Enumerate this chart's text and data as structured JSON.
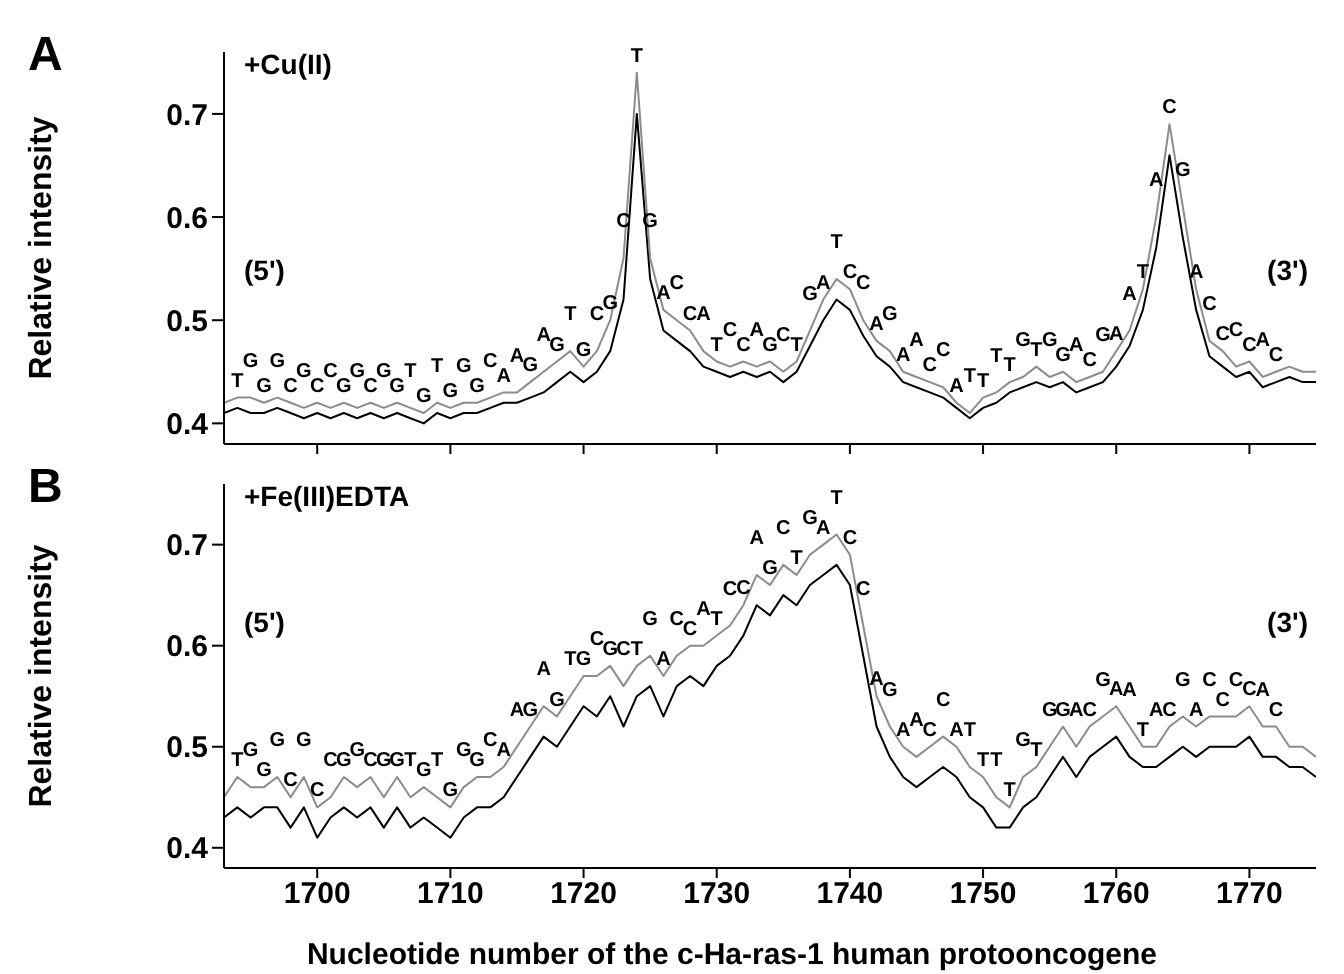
{
  "chart_data": [
    {
      "type": "line",
      "title": "+Cu(II)",
      "ylabel": "Relative intensity",
      "xlim": [
        1693,
        1775
      ],
      "xticks": [
        1700,
        1710,
        1720,
        1730,
        1740,
        1750,
        1760,
        1770
      ],
      "ylim": [
        0.38,
        0.76
      ],
      "yticks": [
        0.4,
        0.5,
        0.6,
        0.7
      ],
      "tick_labels": "y",
      "x": [
        1693,
        1694,
        1695,
        1696,
        1697,
        1698,
        1699,
        1700,
        1701,
        1702,
        1703,
        1704,
        1705,
        1706,
        1707,
        1708,
        1709,
        1710,
        1711,
        1712,
        1713,
        1714,
        1715,
        1716,
        1717,
        1718,
        1719,
        1720,
        1721,
        1722,
        1723,
        1724,
        1725,
        1726,
        1727,
        1728,
        1729,
        1730,
        1731,
        1732,
        1733,
        1734,
        1735,
        1736,
        1737,
        1738,
        1739,
        1740,
        1741,
        1742,
        1743,
        1744,
        1745,
        1746,
        1747,
        1748,
        1749,
        1750,
        1751,
        1752,
        1753,
        1754,
        1755,
        1756,
        1757,
        1758,
        1759,
        1760,
        1761,
        1762,
        1763,
        1764,
        1765,
        1766,
        1767,
        1768,
        1769,
        1770,
        1771,
        1772,
        1773,
        1774,
        1775
      ],
      "series": [
        {
          "color": "#000000",
          "values": [
            0.41,
            0.415,
            0.41,
            0.41,
            0.415,
            0.41,
            0.405,
            0.41,
            0.405,
            0.41,
            0.405,
            0.41,
            0.405,
            0.41,
            0.405,
            0.4,
            0.41,
            0.405,
            0.41,
            0.41,
            0.415,
            0.42,
            0.42,
            0.425,
            0.43,
            0.44,
            0.45,
            0.44,
            0.45,
            0.47,
            0.52,
            0.7,
            0.54,
            0.49,
            0.48,
            0.47,
            0.455,
            0.45,
            0.445,
            0.45,
            0.445,
            0.45,
            0.44,
            0.45,
            0.475,
            0.5,
            0.52,
            0.51,
            0.485,
            0.465,
            0.455,
            0.44,
            0.435,
            0.43,
            0.425,
            0.415,
            0.405,
            0.415,
            0.42,
            0.43,
            0.435,
            0.44,
            0.435,
            0.44,
            0.43,
            0.435,
            0.44,
            0.455,
            0.475,
            0.51,
            0.57,
            0.66,
            0.58,
            0.51,
            0.465,
            0.455,
            0.445,
            0.45,
            0.435,
            0.44,
            0.445,
            0.44,
            0.44
          ]
        },
        {
          "color": "#8c8c8c",
          "values": [
            0.42,
            0.425,
            0.425,
            0.42,
            0.425,
            0.42,
            0.415,
            0.42,
            0.415,
            0.42,
            0.415,
            0.42,
            0.415,
            0.42,
            0.415,
            0.41,
            0.42,
            0.415,
            0.42,
            0.42,
            0.425,
            0.43,
            0.43,
            0.44,
            0.45,
            0.46,
            0.47,
            0.455,
            0.47,
            0.5,
            0.56,
            0.74,
            0.56,
            0.51,
            0.5,
            0.49,
            0.47,
            0.46,
            0.455,
            0.46,
            0.455,
            0.46,
            0.45,
            0.46,
            0.49,
            0.52,
            0.54,
            0.53,
            0.5,
            0.48,
            0.47,
            0.45,
            0.445,
            0.44,
            0.435,
            0.42,
            0.41,
            0.425,
            0.43,
            0.44,
            0.445,
            0.455,
            0.445,
            0.45,
            0.44,
            0.445,
            0.45,
            0.47,
            0.49,
            0.53,
            0.6,
            0.69,
            0.61,
            0.53,
            0.48,
            0.47,
            0.455,
            0.46,
            0.445,
            0.45,
            0.455,
            0.45,
            0.45
          ]
        }
      ],
      "annotations": [
        "A",
        "(5')",
        "(3')",
        {
          "text": "T",
          "x": 1694,
          "y": 0.425
        },
        {
          "text": "G",
          "x": 1695,
          "y": 0.425
        },
        {
          "text": "G",
          "x": 1696,
          "y": 0.42
        },
        {
          "text": "G",
          "x": 1697,
          "y": 0.425
        },
        {
          "text": "C",
          "x": 1698,
          "y": 0.42
        },
        {
          "text": "G",
          "x": 1699,
          "y": 0.415
        },
        {
          "text": "C",
          "x": 1700,
          "y": 0.42
        },
        {
          "text": "C",
          "x": 1701,
          "y": 0.415
        },
        {
          "text": "G",
          "x": 1702,
          "y": 0.42
        },
        {
          "text": "G",
          "x": 1703,
          "y": 0.415
        },
        {
          "text": "C",
          "x": 1704,
          "y": 0.42
        },
        {
          "text": "G",
          "x": 1705,
          "y": 0.415
        },
        {
          "text": "G",
          "x": 1706,
          "y": 0.42
        },
        {
          "text": "T",
          "x": 1707,
          "y": 0.415
        },
        {
          "text": "G",
          "x": 1708,
          "y": 0.41
        },
        {
          "text": "T",
          "x": 1709,
          "y": 0.42
        },
        {
          "text": "G",
          "x": 1710,
          "y": 0.415
        },
        {
          "text": "G",
          "x": 1711,
          "y": 0.42
        },
        {
          "text": "G",
          "x": 1712,
          "y": 0.42
        },
        {
          "text": "C",
          "x": 1713,
          "y": 0.425
        },
        {
          "text": "A",
          "x": 1714,
          "y": 0.43
        },
        {
          "text": "A",
          "x": 1715,
          "y": 0.43
        },
        {
          "text": "G",
          "x": 1716,
          "y": 0.44
        },
        {
          "text": "A",
          "x": 1717,
          "y": 0.45
        },
        {
          "text": "G",
          "x": 1718,
          "y": 0.46
        },
        {
          "text": "T",
          "x": 1719,
          "y": 0.47
        },
        {
          "text": "G",
          "x": 1720,
          "y": 0.455
        },
        {
          "text": "C",
          "x": 1721,
          "y": 0.47
        },
        {
          "text": "G",
          "x": 1722,
          "y": 0.5
        },
        {
          "text": "C",
          "x": 1723,
          "y": 0.56
        },
        {
          "text": "T",
          "x": 1724,
          "y": 0.74
        },
        {
          "text": "G",
          "x": 1725,
          "y": 0.56
        },
        {
          "text": "A",
          "x": 1726,
          "y": 0.51
        },
        {
          "text": "C",
          "x": 1727,
          "y": 0.5
        },
        {
          "text": "C",
          "x": 1728,
          "y": 0.49
        },
        {
          "text": "A",
          "x": 1729,
          "y": 0.47
        },
        {
          "text": "T",
          "x": 1730,
          "y": 0.46
        },
        {
          "text": "C",
          "x": 1731,
          "y": 0.455
        },
        {
          "text": "C",
          "x": 1732,
          "y": 0.46
        },
        {
          "text": "A",
          "x": 1733,
          "y": 0.455
        },
        {
          "text": "G",
          "x": 1734,
          "y": 0.46
        },
        {
          "text": "C",
          "x": 1735,
          "y": 0.45
        },
        {
          "text": "T",
          "x": 1736,
          "y": 0.46
        },
        {
          "text": "G",
          "x": 1737,
          "y": 0.49
        },
        {
          "text": "A",
          "x": 1738,
          "y": 0.52
        },
        {
          "text": "T",
          "x": 1739,
          "y": 0.54
        },
        {
          "text": "C",
          "x": 1740,
          "y": 0.53
        },
        {
          "text": "C",
          "x": 1741,
          "y": 0.5
        },
        {
          "text": "A",
          "x": 1742,
          "y": 0.48
        },
        {
          "text": "G",
          "x": 1743,
          "y": 0.47
        },
        {
          "text": "A",
          "x": 1744,
          "y": 0.45
        },
        {
          "text": "A",
          "x": 1745,
          "y": 0.445
        },
        {
          "text": "C",
          "x": 1746,
          "y": 0.44
        },
        {
          "text": "C",
          "x": 1747,
          "y": 0.435
        },
        {
          "text": "A",
          "x": 1748,
          "y": 0.42
        },
        {
          "text": "T",
          "x": 1749,
          "y": 0.41
        },
        {
          "text": "T",
          "x": 1750,
          "y": 0.425
        },
        {
          "text": "T",
          "x": 1751,
          "y": 0.43
        },
        {
          "text": "T",
          "x": 1752,
          "y": 0.44
        },
        {
          "text": "G",
          "x": 1753,
          "y": 0.445
        },
        {
          "text": "T",
          "x": 1754,
          "y": 0.455
        },
        {
          "text": "G",
          "x": 1755,
          "y": 0.445
        },
        {
          "text": "G",
          "x": 1756,
          "y": 0.45
        },
        {
          "text": "A",
          "x": 1757,
          "y": 0.44
        },
        {
          "text": "C",
          "x": 1758,
          "y": 0.445
        },
        {
          "text": "G",
          "x": 1759,
          "y": 0.45
        },
        {
          "text": "A",
          "x": 1760,
          "y": 0.47
        },
        {
          "text": "A",
          "x": 1761,
          "y": 0.49
        },
        {
          "text": "T",
          "x": 1762,
          "y": 0.53
        },
        {
          "text": "A",
          "x": 1763,
          "y": 0.6
        },
        {
          "text": "C",
          "x": 1764,
          "y": 0.69
        },
        {
          "text": "G",
          "x": 1765,
          "y": 0.61
        },
        {
          "text": "A",
          "x": 1766,
          "y": 0.53
        },
        {
          "text": "C",
          "x": 1767,
          "y": 0.48
        },
        {
          "text": "C",
          "x": 1768,
          "y": 0.47
        },
        {
          "text": "C",
          "x": 1769,
          "y": 0.455
        },
        {
          "text": "C",
          "x": 1770,
          "y": 0.46
        },
        {
          "text": "A",
          "x": 1771,
          "y": 0.445
        },
        {
          "text": "C",
          "x": 1772,
          "y": 0.45
        }
      ]
    },
    {
      "type": "line",
      "title": "+Fe(III)EDTA",
      "xlabel": "Nucleotide number of the c-Ha-ras-1 human protooncogene",
      "ylabel": "Relative intensity",
      "xlim": [
        1693,
        1775
      ],
      "xticks": [
        1700,
        1710,
        1720,
        1730,
        1740,
        1750,
        1760,
        1770
      ],
      "ylim": [
        0.38,
        0.76
      ],
      "yticks": [
        0.4,
        0.5,
        0.6,
        0.7
      ],
      "x": [
        1693,
        1694,
        1695,
        1696,
        1697,
        1698,
        1699,
        1700,
        1701,
        1702,
        1703,
        1704,
        1705,
        1706,
        1707,
        1708,
        1709,
        1710,
        1711,
        1712,
        1713,
        1714,
        1715,
        1716,
        1717,
        1718,
        1719,
        1720,
        1721,
        1722,
        1723,
        1724,
        1725,
        1726,
        1727,
        1728,
        1729,
        1730,
        1731,
        1732,
        1733,
        1734,
        1735,
        1736,
        1737,
        1738,
        1739,
        1740,
        1741,
        1742,
        1743,
        1744,
        1745,
        1746,
        1747,
        1748,
        1749,
        1750,
        1751,
        1752,
        1753,
        1754,
        1755,
        1756,
        1757,
        1758,
        1759,
        1760,
        1761,
        1762,
        1763,
        1764,
        1765,
        1766,
        1767,
        1768,
        1769,
        1770,
        1771,
        1772,
        1773,
        1774,
        1775
      ],
      "series": [
        {
          "color": "#000000",
          "values": [
            0.43,
            0.44,
            0.43,
            0.44,
            0.44,
            0.42,
            0.44,
            0.41,
            0.43,
            0.44,
            0.43,
            0.44,
            0.42,
            0.44,
            0.42,
            0.43,
            0.42,
            0.41,
            0.43,
            0.44,
            0.44,
            0.45,
            0.47,
            0.49,
            0.51,
            0.5,
            0.52,
            0.54,
            0.53,
            0.55,
            0.52,
            0.55,
            0.56,
            0.53,
            0.56,
            0.57,
            0.56,
            0.58,
            0.59,
            0.61,
            0.64,
            0.63,
            0.65,
            0.64,
            0.66,
            0.67,
            0.68,
            0.66,
            0.59,
            0.52,
            0.49,
            0.47,
            0.46,
            0.47,
            0.48,
            0.47,
            0.45,
            0.44,
            0.42,
            0.42,
            0.44,
            0.45,
            0.47,
            0.49,
            0.47,
            0.49,
            0.5,
            0.51,
            0.49,
            0.48,
            0.48,
            0.49,
            0.5,
            0.49,
            0.5,
            0.5,
            0.5,
            0.51,
            0.49,
            0.49,
            0.48,
            0.48,
            0.47
          ]
        },
        {
          "color": "#8c8c8c",
          "values": [
            0.45,
            0.47,
            0.46,
            0.46,
            0.47,
            0.45,
            0.47,
            0.44,
            0.45,
            0.47,
            0.46,
            0.47,
            0.45,
            0.47,
            0.45,
            0.46,
            0.45,
            0.44,
            0.46,
            0.47,
            0.47,
            0.48,
            0.5,
            0.52,
            0.54,
            0.53,
            0.55,
            0.57,
            0.57,
            0.58,
            0.56,
            0.58,
            0.59,
            0.57,
            0.59,
            0.6,
            0.6,
            0.61,
            0.62,
            0.64,
            0.67,
            0.66,
            0.68,
            0.67,
            0.69,
            0.7,
            0.71,
            0.69,
            0.62,
            0.55,
            0.52,
            0.5,
            0.49,
            0.5,
            0.51,
            0.5,
            0.48,
            0.47,
            0.45,
            0.44,
            0.47,
            0.48,
            0.5,
            0.52,
            0.5,
            0.52,
            0.53,
            0.54,
            0.52,
            0.5,
            0.5,
            0.52,
            0.53,
            0.52,
            0.53,
            0.53,
            0.53,
            0.54,
            0.52,
            0.52,
            0.5,
            0.5,
            0.49
          ]
        }
      ],
      "annotations": [
        "B",
        "(5')",
        "(3')",
        {
          "text": "T",
          "x": 1694,
          "y": 0.47
        },
        {
          "text": "G",
          "x": 1695,
          "y": 0.46
        },
        {
          "text": "G",
          "x": 1696,
          "y": 0.46
        },
        {
          "text": "G",
          "x": 1697,
          "y": 0.47
        },
        {
          "text": "C",
          "x": 1698,
          "y": 0.45
        },
        {
          "text": "G",
          "x": 1699,
          "y": 0.47
        },
        {
          "text": "C",
          "x": 1700,
          "y": 0.44
        },
        {
          "text": "C",
          "x": 1701,
          "y": 0.45
        },
        {
          "text": "G",
          "x": 1702,
          "y": 0.47
        },
        {
          "text": "G",
          "x": 1703,
          "y": 0.46
        },
        {
          "text": "C",
          "x": 1704,
          "y": 0.47
        },
        {
          "text": "G",
          "x": 1705,
          "y": 0.45
        },
        {
          "text": "G",
          "x": 1706,
          "y": 0.47
        },
        {
          "text": "T",
          "x": 1707,
          "y": 0.45
        },
        {
          "text": "G",
          "x": 1708,
          "y": 0.46
        },
        {
          "text": "T",
          "x": 1709,
          "y": 0.45
        },
        {
          "text": "G",
          "x": 1710,
          "y": 0.44
        },
        {
          "text": "G",
          "x": 1711,
          "y": 0.46
        },
        {
          "text": "G",
          "x": 1712,
          "y": 0.47
        },
        {
          "text": "C",
          "x": 1713,
          "y": 0.47
        },
        {
          "text": "A",
          "x": 1714,
          "y": 0.48
        },
        {
          "text": "A",
          "x": 1715,
          "y": 0.5
        },
        {
          "text": "G",
          "x": 1716,
          "y": 0.52
        },
        {
          "text": "A",
          "x": 1717,
          "y": 0.54
        },
        {
          "text": "G",
          "x": 1718,
          "y": 0.53
        },
        {
          "text": "T",
          "x": 1719,
          "y": 0.55
        },
        {
          "text": "G",
          "x": 1720,
          "y": 0.57
        },
        {
          "text": "C",
          "x": 1721,
          "y": 0.57
        },
        {
          "text": "G",
          "x": 1722,
          "y": 0.58
        },
        {
          "text": "C",
          "x": 1723,
          "y": 0.56
        },
        {
          "text": "T",
          "x": 1724,
          "y": 0.58
        },
        {
          "text": "G",
          "x": 1725,
          "y": 0.59
        },
        {
          "text": "A",
          "x": 1726,
          "y": 0.57
        },
        {
          "text": "C",
          "x": 1727,
          "y": 0.59
        },
        {
          "text": "C",
          "x": 1728,
          "y": 0.6
        },
        {
          "text": "A",
          "x": 1729,
          "y": 0.6
        },
        {
          "text": "T",
          "x": 1730,
          "y": 0.61
        },
        {
          "text": "C",
          "x": 1731,
          "y": 0.62
        },
        {
          "text": "C",
          "x": 1732,
          "y": 0.64
        },
        {
          "text": "A",
          "x": 1733,
          "y": 0.67
        },
        {
          "text": "G",
          "x": 1734,
          "y": 0.66
        },
        {
          "text": "C",
          "x": 1735,
          "y": 0.68
        },
        {
          "text": "T",
          "x": 1736,
          "y": 0.67
        },
        {
          "text": "G",
          "x": 1737,
          "y": 0.69
        },
        {
          "text": "A",
          "x": 1738,
          "y": 0.7
        },
        {
          "text": "T",
          "x": 1739,
          "y": 0.71
        },
        {
          "text": "C",
          "x": 1740,
          "y": 0.69
        },
        {
          "text": "C",
          "x": 1741,
          "y": 0.62
        },
        {
          "text": "A",
          "x": 1742,
          "y": 0.55
        },
        {
          "text": "G",
          "x": 1743,
          "y": 0.52
        },
        {
          "text": "A",
          "x": 1744,
          "y": 0.5
        },
        {
          "text": "A",
          "x": 1745,
          "y": 0.49
        },
        {
          "text": "C",
          "x": 1746,
          "y": 0.5
        },
        {
          "text": "C",
          "x": 1747,
          "y": 0.51
        },
        {
          "text": "A",
          "x": 1748,
          "y": 0.5
        },
        {
          "text": "T",
          "x": 1749,
          "y": 0.48
        },
        {
          "text": "T",
          "x": 1750,
          "y": 0.47
        },
        {
          "text": "T",
          "x": 1751,
          "y": 0.45
        },
        {
          "text": "T",
          "x": 1752,
          "y": 0.44
        },
        {
          "text": "G",
          "x": 1753,
          "y": 0.47
        },
        {
          "text": "T",
          "x": 1754,
          "y": 0.48
        },
        {
          "text": "G",
          "x": 1755,
          "y": 0.5
        },
        {
          "text": "G",
          "x": 1756,
          "y": 0.52
        },
        {
          "text": "A",
          "x": 1757,
          "y": 0.5
        },
        {
          "text": "C",
          "x": 1758,
          "y": 0.52
        },
        {
          "text": "G",
          "x": 1759,
          "y": 0.53
        },
        {
          "text": "A",
          "x": 1760,
          "y": 0.54
        },
        {
          "text": "A",
          "x": 1761,
          "y": 0.52
        },
        {
          "text": "T",
          "x": 1762,
          "y": 0.5
        },
        {
          "text": "A",
          "x": 1763,
          "y": 0.5
        },
        {
          "text": "C",
          "x": 1764,
          "y": 0.52
        },
        {
          "text": "G",
          "x": 1765,
          "y": 0.53
        },
        {
          "text": "A",
          "x": 1766,
          "y": 0.52
        },
        {
          "text": "C",
          "x": 1767,
          "y": 0.53
        },
        {
          "text": "C",
          "x": 1768,
          "y": 0.53
        },
        {
          "text": "C",
          "x": 1769,
          "y": 0.53
        },
        {
          "text": "C",
          "x": 1770,
          "y": 0.54
        },
        {
          "text": "A",
          "x": 1771,
          "y": 0.52
        },
        {
          "text": "C",
          "x": 1772,
          "y": 0.52
        }
      ]
    }
  ]
}
